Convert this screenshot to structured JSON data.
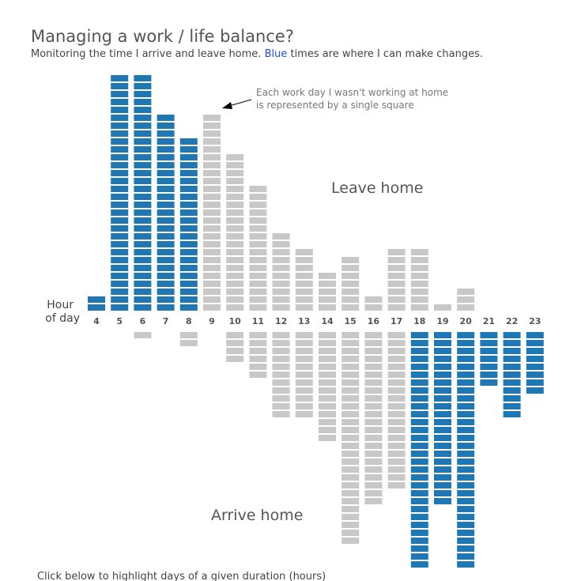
{
  "title": "Managing a work / life balance?",
  "subtitle_pre": "Monitoring the time I arrive and leave home. ",
  "subtitle_blue": "Blue",
  "subtitle_post": " times are where I can make changes.",
  "footer": "Click below to highlight days of a given duration (hours)",
  "chart_data": {
    "type": "bar",
    "title": "Managing a work / life balance?",
    "xlabel": "Hour of day",
    "axis_label_line1": "Hour",
    "axis_label_line2": "of day",
    "categories": [
      4,
      5,
      6,
      7,
      8,
      9,
      10,
      11,
      12,
      13,
      14,
      15,
      16,
      17,
      18,
      19,
      20,
      21,
      22,
      23
    ],
    "series": [
      {
        "name": "Leave home",
        "values": [
          2,
          30,
          30,
          25,
          22,
          25,
          20,
          16,
          10,
          8,
          5,
          7,
          2,
          8,
          8,
          1,
          3,
          0,
          0,
          0
        ],
        "highlight": [
          4,
          5,
          6,
          7,
          8
        ]
      },
      {
        "name": "Arrive home",
        "values": [
          0,
          0,
          1,
          0,
          2,
          0,
          4,
          6,
          11,
          11,
          14,
          27,
          22,
          20,
          30,
          22,
          30,
          7,
          11,
          8
        ],
        "highlight": [
          18,
          19,
          20,
          21,
          22,
          23
        ]
      }
    ],
    "annotation_line1": "Each work day I wasn't working at home",
    "annotation_line2": "is represented by a single square",
    "colors": {
      "highlight": "#1f77b4",
      "normal": "#c8c8c8"
    }
  }
}
